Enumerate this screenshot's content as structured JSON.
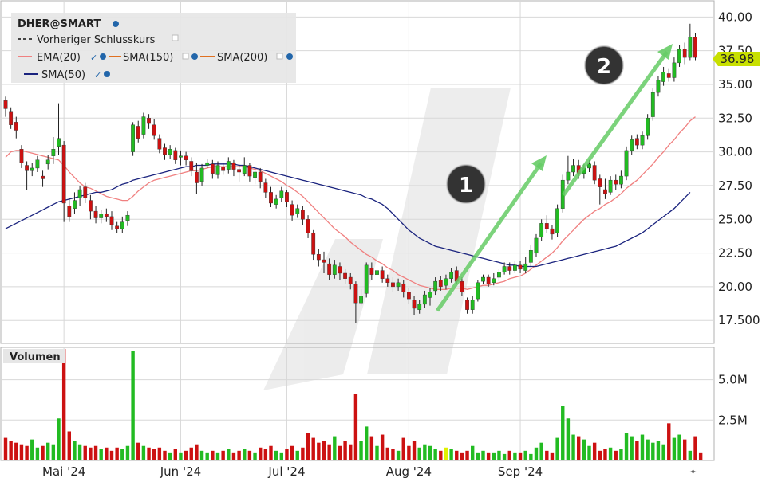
{
  "legend": {
    "symbol": "DHER@SMART",
    "items": [
      {
        "label": "Vorheriger Schlusskurs",
        "color": "#444444",
        "dashed": true
      },
      {
        "label": "EMA(20)",
        "color": "#f08080"
      },
      {
        "label": "SMA(150)",
        "color": "#e07020"
      },
      {
        "label": "SMA(200)",
        "color": "#e07020"
      },
      {
        "label": "SMA(50)",
        "color": "#1a237e"
      }
    ]
  },
  "colors": {
    "up": "#22bb22",
    "down": "#cc1111",
    "ema20": "#f08080",
    "sma50": "#1a237e",
    "grid": "#d8d8d8",
    "arrow": "#66cc66",
    "badge": "#333333",
    "price_tag": "#c8e000",
    "highlight_volume": "#e0f000"
  },
  "annotations": [
    {
      "label": "1"
    },
    {
      "label": "2"
    }
  ],
  "chart_data": {
    "type": "candlestick",
    "title": "DHER@SMART",
    "last_price_label": "36.98",
    "price_axis": {
      "ylim": [
        15.8,
        41.2
      ],
      "ticks": [
        17.5,
        20.0,
        22.5,
        25.0,
        27.5,
        30.0,
        32.5,
        35.0,
        37.5,
        40.0
      ],
      "tick_labels": [
        "17.500",
        "20.00",
        "22.50",
        "25.00",
        "27.50",
        "30.00",
        "32.50",
        "35.00",
        "37.50",
        "40.00"
      ]
    },
    "volume_axis": {
      "title": "Volumen",
      "ylim": [
        0,
        7
      ],
      "ticks": [
        2.5,
        5.0
      ],
      "tick_labels": [
        "2.5M",
        "5.0M"
      ]
    },
    "x_labels": [
      {
        "label": "Mai '24",
        "index": 11
      },
      {
        "label": "Jun '24",
        "index": 33
      },
      {
        "label": "Jul '24",
        "index": 53
      },
      {
        "label": "Aug '24",
        "index": 76
      },
      {
        "label": "Sep '24",
        "index": 97
      }
    ],
    "candles": [
      [
        33.8,
        33.2,
        34.1,
        32.6
      ],
      [
        33.0,
        32.0,
        33.3,
        31.7
      ],
      [
        32.2,
        31.6,
        32.6,
        31.0
      ],
      [
        30.2,
        29.2,
        30.5,
        28.8
      ],
      [
        29.0,
        28.6,
        29.3,
        27.2
      ],
      [
        28.6,
        28.8,
        29.2,
        28.2
      ],
      [
        28.8,
        29.4,
        29.7,
        28.5
      ],
      [
        28.2,
        28.0,
        28.6,
        27.4
      ],
      [
        29.1,
        29.4,
        29.8,
        28.7
      ],
      [
        29.7,
        30.2,
        31.1,
        29.1
      ],
      [
        30.4,
        31.0,
        33.6,
        29.8
      ],
      [
        30.5,
        26.2,
        30.8,
        24.8
      ],
      [
        26.0,
        25.2,
        26.5,
        24.8
      ],
      [
        25.8,
        26.4,
        27.0,
        25.4
      ],
      [
        26.6,
        27.2,
        27.5,
        26.0
      ],
      [
        27.4,
        26.6,
        27.7,
        26.2
      ],
      [
        26.4,
        25.6,
        26.8,
        25.0
      ],
      [
        25.6,
        25.1,
        26.0,
        24.7
      ],
      [
        25.1,
        25.4,
        25.7,
        24.7
      ],
      [
        25.4,
        25.2,
        25.8,
        24.8
      ],
      [
        25.2,
        24.6,
        25.6,
        24.2
      ],
      [
        24.5,
        24.3,
        24.8,
        24.0
      ],
      [
        24.3,
        24.8,
        25.2,
        24.0
      ],
      [
        24.9,
        25.3,
        25.6,
        24.5
      ],
      [
        30.0,
        32.0,
        32.2,
        29.7
      ],
      [
        31.9,
        31.0,
        32.3,
        30.7
      ],
      [
        31.3,
        32.6,
        32.9,
        31.0
      ],
      [
        32.5,
        32.1,
        32.8,
        31.7
      ],
      [
        32.0,
        31.2,
        32.4,
        30.9
      ],
      [
        31.0,
        30.2,
        31.3,
        29.9
      ],
      [
        30.3,
        29.8,
        30.6,
        29.4
      ],
      [
        29.8,
        30.2,
        30.5,
        29.5
      ],
      [
        30.1,
        29.4,
        30.3,
        29.1
      ],
      [
        29.6,
        29.7,
        30.1,
        29.0
      ],
      [
        29.7,
        29.4,
        30.0,
        29.0
      ],
      [
        29.3,
        28.6,
        29.6,
        28.2
      ],
      [
        28.5,
        27.7,
        29.2,
        26.9
      ],
      [
        27.8,
        28.8,
        29.1,
        27.5
      ],
      [
        29.0,
        29.2,
        29.5,
        28.8
      ],
      [
        29.1,
        28.4,
        29.4,
        28.0
      ],
      [
        28.3,
        29.0,
        29.3,
        28.0
      ],
      [
        28.9,
        28.6,
        29.2,
        28.3
      ],
      [
        28.7,
        29.3,
        29.6,
        28.4
      ],
      [
        29.2,
        28.7,
        29.4,
        28.2
      ],
      [
        28.7,
        28.5,
        29.1,
        27.8
      ],
      [
        28.4,
        29.0,
        29.6,
        28.2
      ],
      [
        29.0,
        28.2,
        29.2,
        27.8
      ],
      [
        28.1,
        28.5,
        28.8,
        27.6
      ],
      [
        28.5,
        27.8,
        28.8,
        27.3
      ],
      [
        27.7,
        27.0,
        28.0,
        26.6
      ],
      [
        27.0,
        26.2,
        27.4,
        25.9
      ],
      [
        26.1,
        26.5,
        26.8,
        25.8
      ],
      [
        26.6,
        27.1,
        27.4,
        26.3
      ],
      [
        27.0,
        26.3,
        27.2,
        25.9
      ],
      [
        26.1,
        25.3,
        26.4,
        24.9
      ],
      [
        25.4,
        25.8,
        26.1,
        25.1
      ],
      [
        25.7,
        25.0,
        26.0,
        24.6
      ],
      [
        25.0,
        24.0,
        25.3,
        23.6
      ],
      [
        24.0,
        22.4,
        24.2,
        22.0
      ],
      [
        22.4,
        22.0,
        22.8,
        21.5
      ],
      [
        22.0,
        21.8,
        22.6,
        21.0
      ],
      [
        21.7,
        20.9,
        22.1,
        20.5
      ],
      [
        20.9,
        21.6,
        22.0,
        20.6
      ],
      [
        21.5,
        21.0,
        21.8,
        20.5
      ],
      [
        21.0,
        20.6,
        21.3,
        20.2
      ],
      [
        20.7,
        20.2,
        21.0,
        19.8
      ],
      [
        20.2,
        18.8,
        20.4,
        17.3
      ],
      [
        18.8,
        19.3,
        19.8,
        18.6
      ],
      [
        19.5,
        21.6,
        21.8,
        19.2
      ],
      [
        21.4,
        20.9,
        21.8,
        20.5
      ],
      [
        20.9,
        21.2,
        21.6,
        20.6
      ],
      [
        21.2,
        20.6,
        21.5,
        20.3
      ],
      [
        20.6,
        20.3,
        20.9,
        20.0
      ],
      [
        20.3,
        20.0,
        20.7,
        19.6
      ],
      [
        20.0,
        20.3,
        20.6,
        19.7
      ],
      [
        20.2,
        19.6,
        20.5,
        19.2
      ],
      [
        19.6,
        19.1,
        19.9,
        18.7
      ],
      [
        19.0,
        18.4,
        19.3,
        17.9
      ],
      [
        18.3,
        18.7,
        19.0,
        18.0
      ],
      [
        18.7,
        19.4,
        19.7,
        18.4
      ],
      [
        19.2,
        19.6,
        19.9,
        18.6
      ],
      [
        19.7,
        20.4,
        20.7,
        19.4
      ],
      [
        20.5,
        20.0,
        20.8,
        19.7
      ],
      [
        20.1,
        20.6,
        20.9,
        19.8
      ],
      [
        20.6,
        21.1,
        21.4,
        20.3
      ],
      [
        21.2,
        20.4,
        21.5,
        20.2
      ],
      [
        20.4,
        19.6,
        20.7,
        19.3
      ],
      [
        19.0,
        18.3,
        19.2,
        18.0
      ],
      [
        18.3,
        19.0,
        19.3,
        18.0
      ],
      [
        19.1,
        20.3,
        20.5,
        18.9
      ],
      [
        20.4,
        20.7,
        20.9,
        20.2
      ],
      [
        20.7,
        20.2,
        20.9,
        20.0
      ],
      [
        20.3,
        20.6,
        21.0,
        20.1
      ],
      [
        20.7,
        21.1,
        21.3,
        20.4
      ],
      [
        21.1,
        21.5,
        21.8,
        20.9
      ],
      [
        21.5,
        21.2,
        21.8,
        20.9
      ],
      [
        21.2,
        21.6,
        21.9,
        21.0
      ],
      [
        21.6,
        21.3,
        21.9,
        21.0
      ],
      [
        21.2,
        21.7,
        22.2,
        21.0
      ],
      [
        21.8,
        22.7,
        23.1,
        21.5
      ],
      [
        22.5,
        23.6,
        23.9,
        22.2
      ],
      [
        23.7,
        24.7,
        25.0,
        23.4
      ],
      [
        24.7,
        24.3,
        25.3,
        24.0
      ],
      [
        24.3,
        23.9,
        24.6,
        23.5
      ],
      [
        24.0,
        25.8,
        26.1,
        23.7
      ],
      [
        25.8,
        27.9,
        28.3,
        25.5
      ],
      [
        27.9,
        28.5,
        29.7,
        27.6
      ],
      [
        28.5,
        29.0,
        29.5,
        28.2
      ],
      [
        29.0,
        28.4,
        29.4,
        28.0
      ],
      [
        28.4,
        28.8,
        29.1,
        28.0
      ],
      [
        28.8,
        29.1,
        29.4,
        28.5
      ],
      [
        29.0,
        27.9,
        29.3,
        27.6
      ],
      [
        28.0,
        27.4,
        28.3,
        26.1
      ],
      [
        27.2,
        26.9,
        28.0,
        26.5
      ],
      [
        27.0,
        27.9,
        28.2,
        26.8
      ],
      [
        27.9,
        27.6,
        28.3,
        27.2
      ],
      [
        27.6,
        28.2,
        28.6,
        27.3
      ],
      [
        28.2,
        30.1,
        30.4,
        27.9
      ],
      [
        30.1,
        30.9,
        31.2,
        29.8
      ],
      [
        31.0,
        30.5,
        31.3,
        30.2
      ],
      [
        30.5,
        31.2,
        31.5,
        30.2
      ],
      [
        31.2,
        32.5,
        32.8,
        30.9
      ],
      [
        32.6,
        34.4,
        34.7,
        32.3
      ],
      [
        34.4,
        35.3,
        35.6,
        34.1
      ],
      [
        35.2,
        35.9,
        36.3,
        34.9
      ],
      [
        35.8,
        35.5,
        36.2,
        35.2
      ],
      [
        35.5,
        36.6,
        37.0,
        35.2
      ],
      [
        36.6,
        37.6,
        37.9,
        36.3
      ],
      [
        37.6,
        37.0,
        38.1,
        36.5
      ],
      [
        37.0,
        38.5,
        39.5,
        36.8
      ],
      [
        38.5,
        37.0,
        38.8,
        36.8
      ]
    ],
    "volume": [
      1.4,
      1.2,
      1.1,
      1.0,
      0.9,
      1.3,
      0.8,
      0.9,
      1.1,
      1.0,
      2.6,
      6.9,
      1.8,
      1.2,
      1.0,
      0.9,
      0.8,
      0.9,
      0.7,
      0.8,
      0.6,
      0.8,
      0.7,
      0.9,
      6.8,
      1.1,
      0.9,
      0.8,
      0.7,
      0.8,
      0.6,
      0.5,
      0.7,
      0.5,
      0.6,
      0.8,
      1.0,
      0.6,
      0.5,
      0.6,
      0.5,
      0.6,
      0.7,
      0.5,
      0.6,
      0.7,
      0.6,
      0.5,
      0.8,
      0.7,
      0.9,
      0.6,
      0.5,
      0.7,
      0.9,
      0.6,
      0.8,
      1.7,
      1.4,
      1.1,
      1.2,
      1.0,
      1.5,
      0.9,
      1.2,
      1.0,
      4.1,
      1.2,
      2.1,
      1.5,
      0.9,
      1.6,
      0.8,
      0.7,
      0.6,
      1.4,
      0.9,
      1.2,
      0.8,
      1.0,
      0.9,
      0.7,
      0.6,
      0.8,
      0.7,
      0.6,
      0.5,
      0.6,
      0.9,
      0.5,
      0.6,
      0.5,
      0.5,
      0.6,
      0.4,
      0.6,
      0.5,
      0.5,
      0.6,
      0.4,
      0.8,
      1.1,
      0.6,
      0.5,
      1.4,
      3.4,
      2.6,
      1.6,
      1.5,
      1.3,
      0.9,
      1.1,
      0.6,
      0.7,
      0.8,
      0.6,
      0.7,
      1.7,
      1.5,
      1.2,
      1.6,
      1.3,
      1.1,
      1.2,
      1.0,
      2.3,
      1.4,
      1.6,
      1.3,
      0.6,
      1.5,
      0.5
    ],
    "ema20": [
      29.6,
      30.0,
      30.1,
      30.1,
      30.0,
      29.9,
      29.8,
      29.7,
      29.6,
      29.5,
      29.4,
      29.0,
      28.5,
      28.1,
      27.7,
      27.4,
      27.3,
      27.1,
      26.9,
      26.7,
      26.6,
      26.5,
      26.4,
      26.4,
      26.7,
      27.1,
      27.4,
      27.7,
      27.9,
      28.0,
      28.1,
      28.2,
      28.3,
      28.4,
      28.5,
      28.6,
      28.6,
      28.7,
      28.8,
      28.9,
      28.9,
      28.9,
      28.9,
      28.9,
      28.9,
      28.9,
      28.8,
      28.7,
      28.6,
      28.4,
      28.2,
      28.0,
      27.8,
      27.5,
      27.3,
      27.0,
      26.7,
      26.3,
      25.9,
      25.5,
      25.1,
      24.7,
      24.3,
      24.0,
      23.7,
      23.3,
      23.0,
      22.7,
      22.4,
      22.2,
      21.9,
      21.7,
      21.4,
      21.2,
      20.9,
      20.7,
      20.5,
      20.3,
      20.1,
      20.0,
      19.9,
      19.8,
      19.8,
      19.8,
      19.9,
      19.9,
      19.9,
      19.8,
      19.9,
      20.0,
      20.1,
      20.1,
      20.2,
      20.3,
      20.4,
      20.6,
      20.7,
      20.8,
      21.0,
      21.3,
      21.6,
      21.9,
      22.2,
      22.5,
      22.9,
      23.4,
      23.8,
      24.2,
      24.6,
      25.0,
      25.3,
      25.6,
      25.8,
      26.1,
      26.3,
      26.6,
      26.9,
      27.3,
      27.6,
      27.9,
      28.3,
      28.7,
      29.1,
      29.6,
      30.0,
      30.5,
      30.9,
      31.4,
      31.8,
      32.3,
      32.6
    ],
    "sma50": [
      24.3,
      24.5,
      24.7,
      24.9,
      25.1,
      25.3,
      25.5,
      25.7,
      25.9,
      26.1,
      26.3,
      26.4,
      26.5,
      26.6,
      26.7,
      26.8,
      26.9,
      27.0,
      27.0,
      27.1,
      27.2,
      27.4,
      27.6,
      27.7,
      27.9,
      28.0,
      28.1,
      28.2,
      28.3,
      28.4,
      28.5,
      28.6,
      28.7,
      28.8,
      28.9,
      28.9,
      29.0,
      29.0,
      29.0,
      29.1,
      29.1,
      29.1,
      29.1,
      29.1,
      29.0,
      29.0,
      28.9,
      28.8,
      28.7,
      28.6,
      28.5,
      28.4,
      28.3,
      28.2,
      28.1,
      28.0,
      27.9,
      27.8,
      27.7,
      27.6,
      27.5,
      27.4,
      27.3,
      27.2,
      27.1,
      27.0,
      26.9,
      26.8,
      26.6,
      26.5,
      26.3,
      26.1,
      25.8,
      25.4,
      25.0,
      24.6,
      24.2,
      23.9,
      23.6,
      23.4,
      23.2,
      23.0,
      22.9,
      22.8,
      22.7,
      22.6,
      22.5,
      22.4,
      22.3,
      22.2,
      22.1,
      22.0,
      21.9,
      21.8,
      21.7,
      21.6,
      21.6,
      21.5,
      21.5,
      21.5,
      21.5,
      21.6,
      21.7,
      21.8,
      21.9,
      22.0,
      22.1,
      22.2,
      22.3,
      22.4,
      22.5,
      22.6,
      22.7,
      22.8,
      22.9,
      23.0,
      23.2,
      23.4,
      23.6,
      23.8,
      24.0,
      24.3,
      24.6,
      24.9,
      25.2,
      25.5,
      25.8,
      26.2,
      26.6,
      27.0
    ]
  }
}
